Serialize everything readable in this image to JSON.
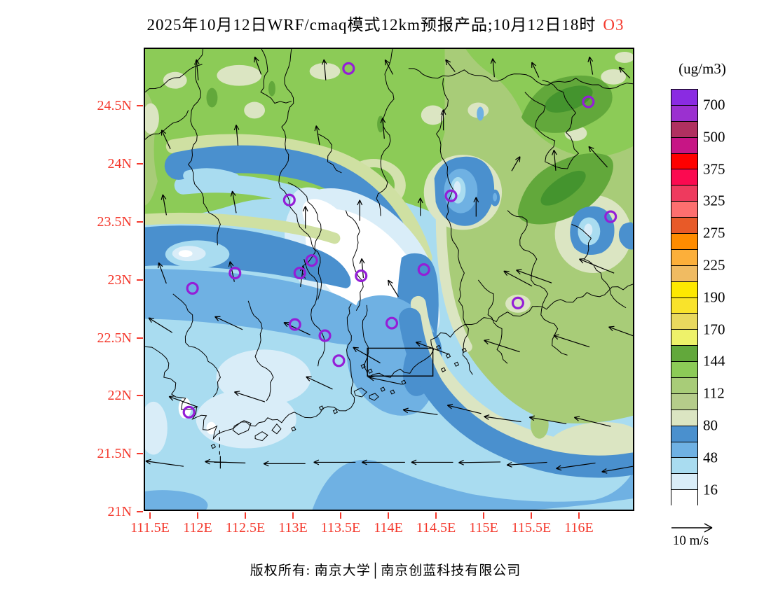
{
  "title": {
    "main": "2025年10月12日WRF/cmaq模式12km预报产品;10月12日18时",
    "pollutant": "O3"
  },
  "colorbar": {
    "unit_label": "(ug/m3)",
    "tick_labels": [
      "700",
      "500",
      "375",
      "325",
      "275",
      "225",
      "190",
      "170",
      "144",
      "112",
      "80",
      "48",
      "16"
    ],
    "cell_colors_top_to_bottom": [
      "#8a2be2",
      "#9b30d0",
      "#b03060",
      "#c71585",
      "#ff0000",
      "#fb0a50",
      "#ee3a5e",
      "#fd6f6f",
      "#e85a28",
      "#ff8c00",
      "#fcaf3a",
      "#f0bb62",
      "#fee800",
      "#f9e32b",
      "#e9d95e",
      "#eef26a",
      "#62a83b",
      "#8ccb57",
      "#a8cc78",
      "#b5cc8a",
      "#dbe5c2",
      "#4a90ce",
      "#6fb1e3",
      "#a9dcf0",
      "#d9edf8",
      "#ffffff"
    ]
  },
  "axes": {
    "lat_labels": [
      "24.5N",
      "24N",
      "23.5N",
      "23N",
      "22.5N",
      "22N",
      "21.5N",
      "21N"
    ],
    "lon_labels": [
      "111.5E",
      "112E",
      "112.5E",
      "113E",
      "113.5E",
      "114E",
      "114.5E",
      "115E",
      "115.5E",
      "116E"
    ]
  },
  "wind_legend": {
    "label": "10 m/s"
  },
  "footer": {
    "text": "版权所有: 南京大学│南京创蓝科技有限公司"
  },
  "colors": {
    "axis_label_red": "#f4392d",
    "title_highlight_red": "#f4392d",
    "station_ring_purple": "#941ed7",
    "boundary_black": "#000000",
    "map_fill_low_white": "#ffffff",
    "map_fill_sea_lightblue": "#a9dcf0",
    "map_fill_band_steelblue": "#4a90ce",
    "map_fill_green": "#8ccb57",
    "map_fill_olive": "#b5cc8a",
    "map_fill_darkgreen": "#62a83b"
  }
}
